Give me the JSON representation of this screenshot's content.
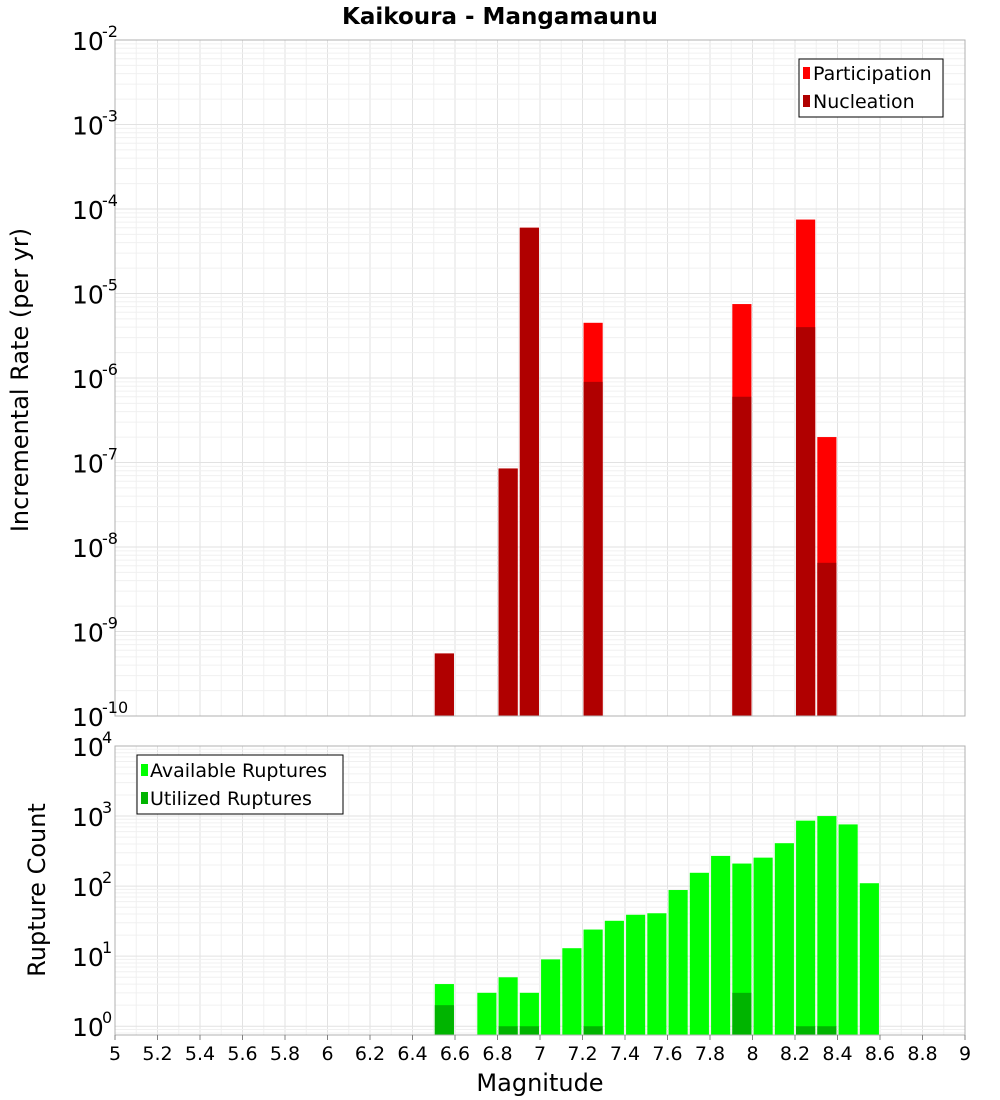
{
  "colors": {
    "participation": "#ff0000",
    "nucleation": "#b00000",
    "available": "#00ff00",
    "utilized": "#00b400"
  },
  "chart_data": [
    {
      "type": "bar",
      "title": "Kaikoura - Mangamaunu",
      "xlabel": "Magnitude",
      "ylabel": "Incremental Rate (per yr)",
      "yscale": "log",
      "xlim": [
        5,
        9
      ],
      "ylim": [
        1e-10,
        0.01
      ],
      "ytick_exponents": [
        -10,
        -9,
        -8,
        -7,
        -6,
        -5,
        -4,
        -3,
        -2
      ],
      "ytick_base": "10",
      "legend": {
        "location": "top-right",
        "entries": [
          "Participation",
          "Nucleation"
        ]
      },
      "bin_width": 0.1,
      "series": [
        {
          "name": "Participation",
          "x": [
            6.55,
            6.85,
            6.95,
            7.25,
            7.95,
            8.25,
            8.35
          ],
          "values": [
            5.5e-10,
            8.5e-08,
            6e-05,
            4.5e-06,
            7.5e-06,
            7.5e-05,
            2e-07
          ]
        },
        {
          "name": "Nucleation",
          "x": [
            6.55,
            6.85,
            6.95,
            7.25,
            7.95,
            8.25,
            8.35
          ],
          "values": [
            5.5e-10,
            8.5e-08,
            6e-05,
            9e-07,
            6e-07,
            4e-06,
            6.5e-09
          ]
        }
      ]
    },
    {
      "type": "bar",
      "xlabel": "Magnitude",
      "ylabel": "Rupture Count",
      "yscale": "log",
      "xlim": [
        5,
        9
      ],
      "ylim": [
        0.75,
        10000
      ],
      "ytick_exponents": [
        0,
        1,
        2,
        3,
        4
      ],
      "ytick_base": "10",
      "xticks": [
        "5",
        "5.2",
        "5.4",
        "5.6",
        "5.8",
        "6",
        "6.2",
        "6.4",
        "6.6",
        "6.8",
        "7",
        "7.2",
        "7.4",
        "7.6",
        "7.8",
        "8",
        "8.2",
        "8.4",
        "8.6",
        "8.8",
        "9"
      ],
      "legend": {
        "location": "top-left",
        "entries": [
          "Available Ruptures",
          "Utilized Ruptures"
        ]
      },
      "bin_width": 0.1,
      "series": [
        {
          "name": "Available Ruptures",
          "x": [
            6.55,
            6.75,
            6.85,
            6.95,
            7.05,
            7.15,
            7.25,
            7.35,
            7.45,
            7.55,
            7.65,
            7.75,
            7.85,
            7.95,
            8.05,
            8.15,
            8.25,
            8.35,
            8.45,
            8.55
          ],
          "values": [
            4,
            3,
            5,
            3,
            9,
            13,
            24,
            32,
            39,
            41,
            88,
            155,
            270,
            210,
            255,
            410,
            860,
            1000,
            760,
            110
          ]
        },
        {
          "name": "Utilized Ruptures",
          "x": [
            6.55,
            6.85,
            6.95,
            7.25,
            7.95,
            8.25,
            8.35
          ],
          "values": [
            2,
            1,
            1,
            1,
            3,
            1,
            1
          ]
        }
      ]
    }
  ]
}
